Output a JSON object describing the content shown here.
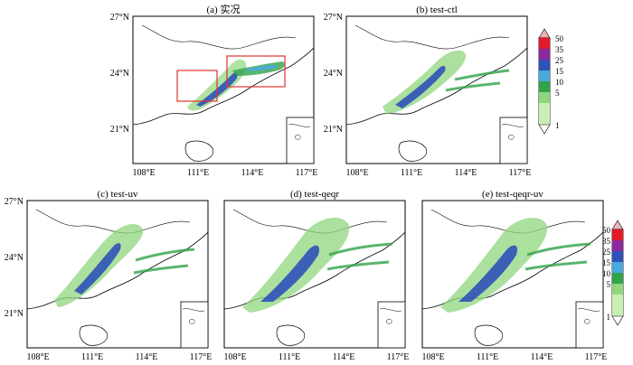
{
  "panels": [
    {
      "id": "a",
      "title": "(a) 实况",
      "x_ticks": [
        "108°E",
        "111°E",
        "114°E",
        "117°E"
      ],
      "y_ticks": [
        "27°N",
        "24°N",
        "21°N"
      ]
    },
    {
      "id": "b",
      "title": "(b) test-ctl",
      "x_ticks": [
        "108°E",
        "111°E",
        "114°E",
        "117°E"
      ],
      "y_ticks": [
        "27°N",
        "24°N",
        "21°N"
      ]
    },
    {
      "id": "c",
      "title": "(c) test-uv",
      "x_ticks": [
        "108°E",
        "111°E",
        "114°E",
        "117°E"
      ],
      "y_ticks": [
        "27°N",
        "24°N",
        "21°N"
      ]
    },
    {
      "id": "d",
      "title": "(d) test-qeqr",
      "x_ticks": [
        "108°E",
        "111°E",
        "114°E",
        "117°E"
      ],
      "y_ticks": []
    },
    {
      "id": "e",
      "title": "(e) test-qeqr-uv",
      "x_ticks": [
        "108°E",
        "111°E",
        "114°E",
        "117°E"
      ],
      "y_ticks": []
    }
  ],
  "colorbar": {
    "levels": [
      "1",
      "5",
      "10",
      "15",
      "25",
      "35",
      "50"
    ],
    "colors": [
      "#c8efb4",
      "#8fd67e",
      "#31a34a",
      "#4aa8dd",
      "#2f52b8",
      "#8a2a9e",
      "#e21b2a",
      "#f2b1b8"
    ]
  },
  "colors": {
    "land_edge": "#000000",
    "box": "#e0332b"
  }
}
